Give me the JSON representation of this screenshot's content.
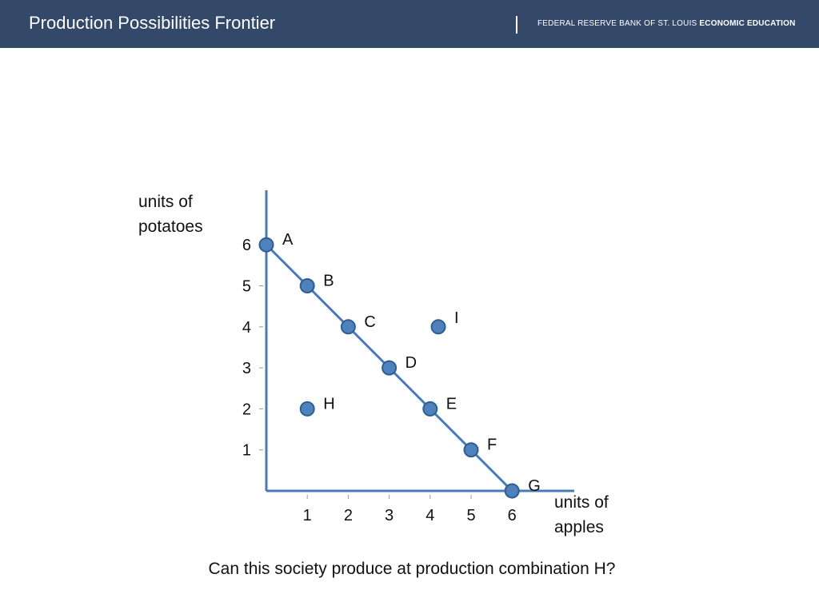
{
  "header": {
    "title": "Production Possibilities Frontier",
    "org_plain": "FEDERAL RESERVE BANK OF ST. LOUIS ",
    "org_bold": "ECONOMIC EDUCATION"
  },
  "colors": {
    "header_bg": "#34496a",
    "axis": "#4a7bb5",
    "point_fill": "#4f81bd",
    "point_stroke": "#2e5d8f"
  },
  "chart_data": {
    "type": "scatter",
    "title": "",
    "ylabel_lines": [
      "units of",
      "potatoes"
    ],
    "xlabel_lines": [
      "units of",
      "apples"
    ],
    "x_ticks": [
      "1",
      "2",
      "3",
      "4",
      "5",
      "6"
    ],
    "y_ticks": [
      "1",
      "2",
      "3",
      "4",
      "5",
      "6"
    ],
    "xlim": [
      0,
      7.5
    ],
    "ylim": [
      0,
      7.5
    ],
    "frontier": [
      [
        0,
        6
      ],
      [
        6,
        0
      ]
    ],
    "points": [
      {
        "label": "A",
        "x": 0,
        "y": 6
      },
      {
        "label": "B",
        "x": 1,
        "y": 5
      },
      {
        "label": "C",
        "x": 2,
        "y": 4
      },
      {
        "label": "D",
        "x": 3,
        "y": 3
      },
      {
        "label": "E",
        "x": 4,
        "y": 2
      },
      {
        "label": "F",
        "x": 5,
        "y": 1
      },
      {
        "label": "G",
        "x": 6,
        "y": 0
      },
      {
        "label": "H",
        "x": 1,
        "y": 2
      },
      {
        "label": "I",
        "x": 4.2,
        "y": 4
      }
    ]
  },
  "question": "Can this society produce at production combination H?"
}
